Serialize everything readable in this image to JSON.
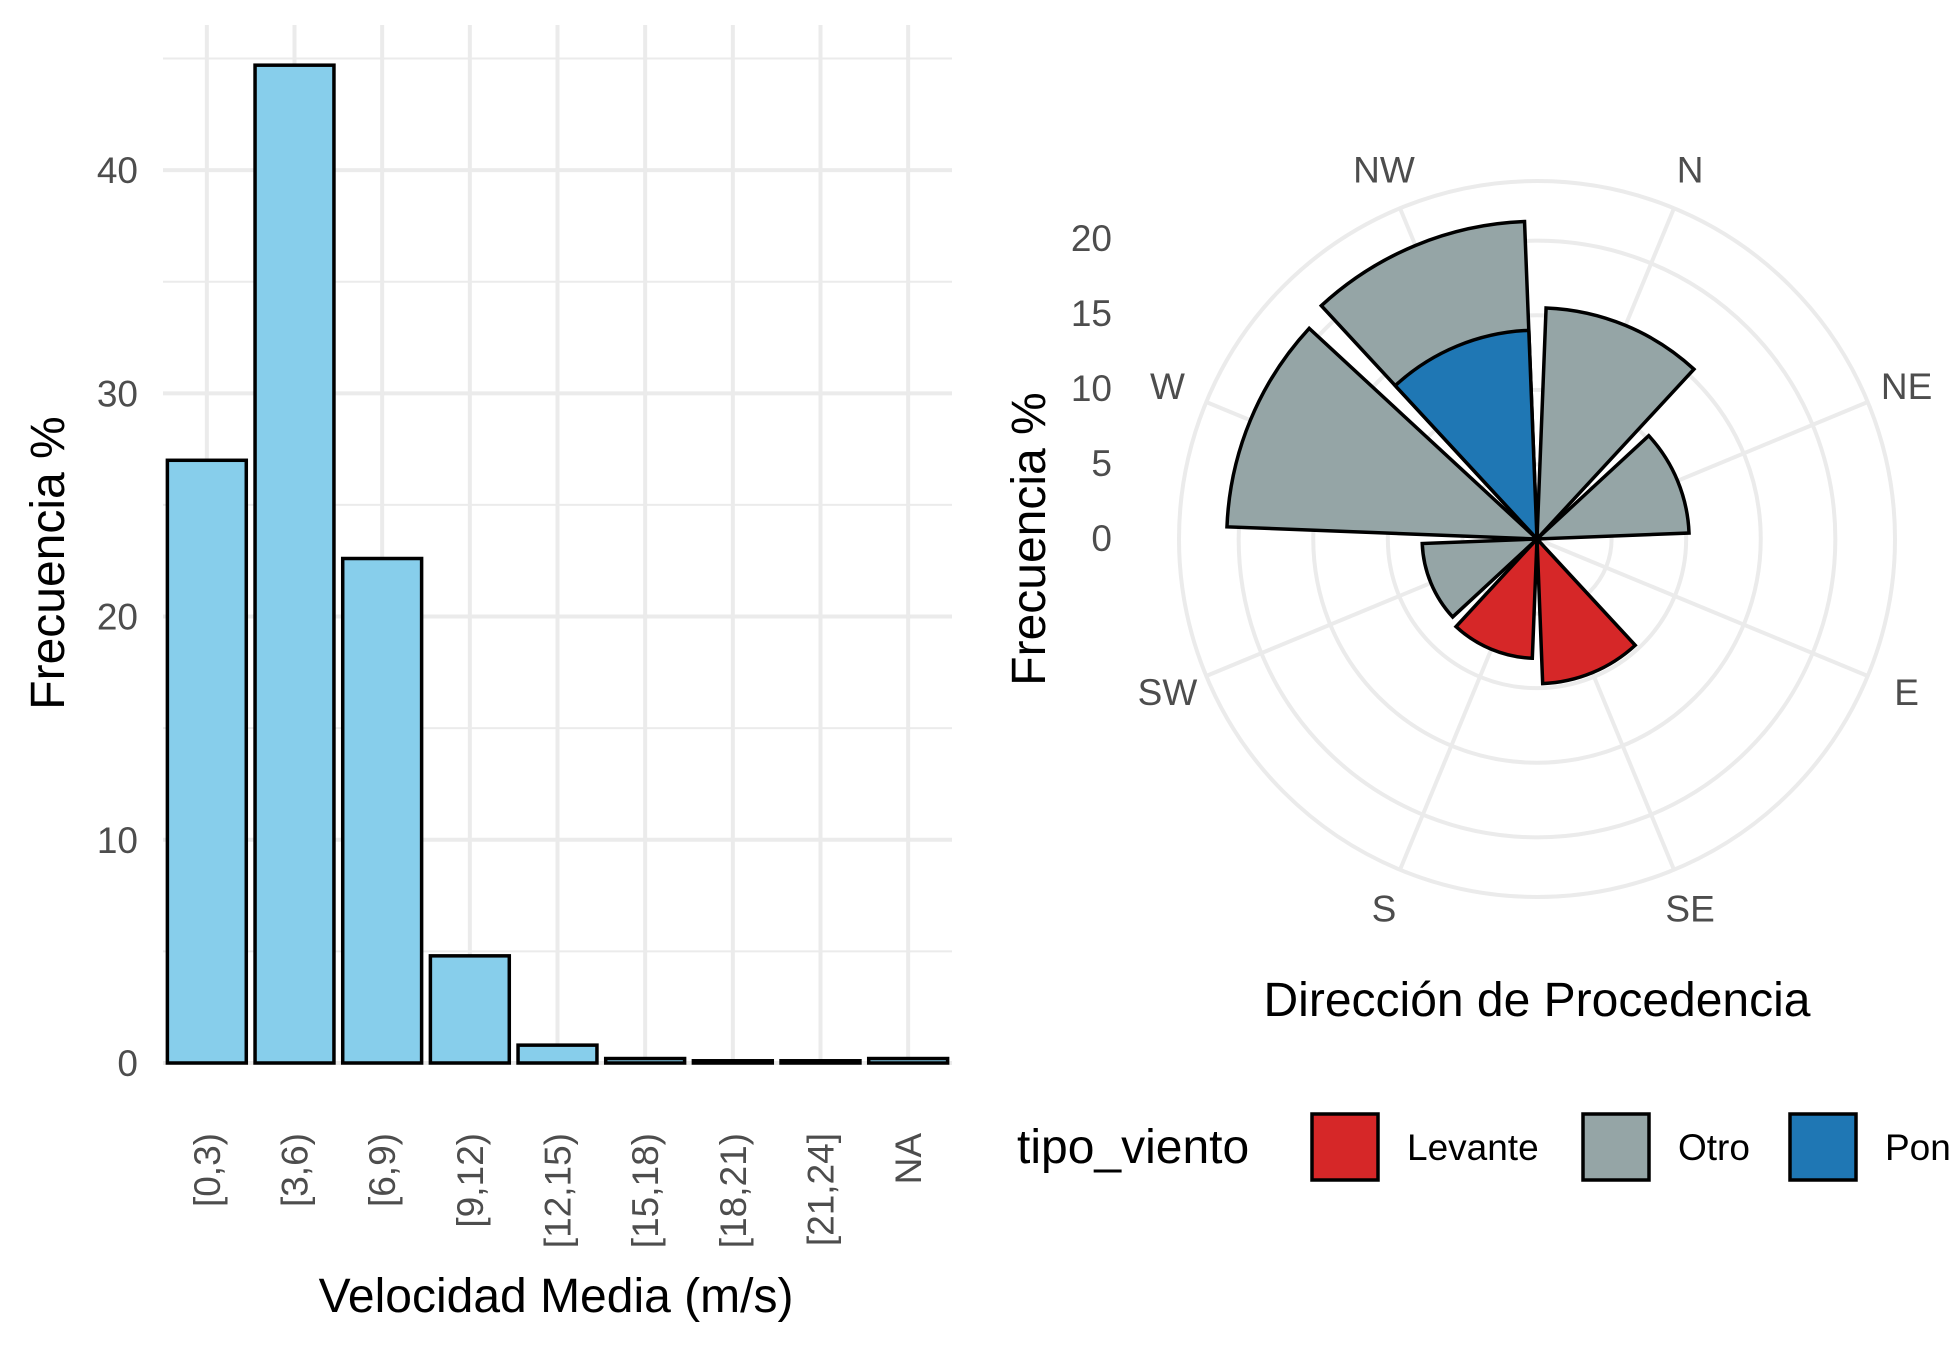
{
  "chart_data": [
    {
      "type": "bar",
      "categories": [
        "[0,3)",
        "[3,6)",
        "[6,9)",
        "[9,12)",
        "[12,15)",
        "[15,18)",
        "[18,21)",
        "[21,24]",
        "NA"
      ],
      "values": [
        27.0,
        44.7,
        22.6,
        4.8,
        0.8,
        0.2,
        0.1,
        0.1,
        0.2
      ],
      "xlabel": "Velocidad Media (m/s)",
      "ylabel": "Frecuencia %",
      "yticks": [
        0,
        10,
        20,
        30,
        40
      ],
      "ylim": [
        0,
        46.5
      ],
      "bar_color": "#87CEEB",
      "grid": true
    },
    {
      "type": "polar-bar",
      "categories": [
        "N",
        "NE",
        "E",
        "SE",
        "S",
        "SW",
        "W",
        "NW"
      ],
      "directions_deg": [
        22.5,
        67.5,
        112.5,
        157.5,
        202.5,
        247.5,
        292.5,
        337.5
      ],
      "series": [
        {
          "name": "Levante",
          "color": "#D62728",
          "values": [
            0,
            0,
            0,
            9.7,
            8.0,
            0,
            0,
            0
          ]
        },
        {
          "name": "Otro",
          "color": "#95A5A6",
          "values": [
            15.5,
            10.2,
            0,
            0,
            0,
            7.7,
            20.8,
            21.3
          ]
        },
        {
          "name": "Poniente",
          "color": "#1F77B4",
          "values": [
            0,
            0,
            0,
            0,
            0,
            0,
            0,
            14.0
          ]
        }
      ],
      "xlabel": "Dirección de Procedencia",
      "ylabel": "Frecuencia %",
      "rticks": [
        0,
        5,
        10,
        15,
        20
      ],
      "rlim": [
        0,
        24
      ],
      "grid": true,
      "legend": {
        "title": "tipo_viento",
        "position": "bottom"
      }
    }
  ]
}
